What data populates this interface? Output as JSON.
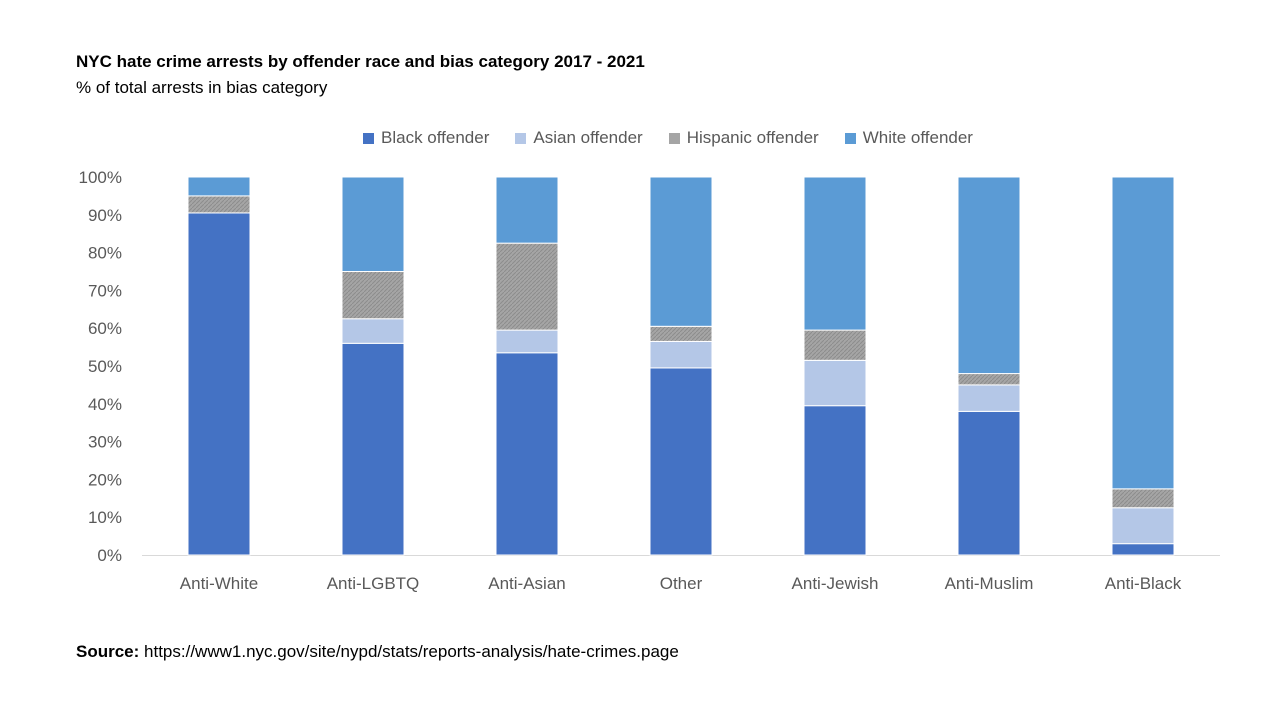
{
  "header": {
    "title": "NYC hate crime arrests by offender race and bias category 2017 - 2021",
    "subtitle": "% of total arrests in bias category"
  },
  "footer": {
    "source_label": "Source:",
    "source_url": "https://www1.nyc.gov/site/nypd/stats/reports-analysis/hate-crimes.page"
  },
  "colors": {
    "black": "#4472C4",
    "asian": "#B4C7E7",
    "hispanic": "#A5A5A5",
    "white": "#5B9BD5"
  },
  "chart_data": {
    "type": "bar",
    "stacked": true,
    "title": "NYC hate crime arrests by offender race and bias category 2017 - 2021",
    "subtitle": "% of total arrests in bias category",
    "xlabel": "",
    "ylabel": "",
    "ylim": [
      0,
      100
    ],
    "y_ticks": [
      "0%",
      "10%",
      "20%",
      "30%",
      "40%",
      "50%",
      "60%",
      "70%",
      "80%",
      "90%",
      "100%"
    ],
    "legend_position": "top",
    "grid": false,
    "categories": [
      "Anti-White",
      "Anti-LGBTQ",
      "Anti-Asian",
      "Other",
      "Anti-Jewish",
      "Anti-Muslim",
      "Anti-Black"
    ],
    "series": [
      {
        "name": "Black offender",
        "color": "#4472C4",
        "values": [
          90.5,
          56,
          53.5,
          49.5,
          39.5,
          38,
          3
        ]
      },
      {
        "name": "Asian offender",
        "color": "#B4C7E7",
        "values": [
          0,
          6.5,
          6,
          7,
          12,
          7,
          9.5
        ]
      },
      {
        "name": "Hispanic offender",
        "color": "#A5A5A5",
        "values": [
          4.5,
          12.5,
          23,
          4,
          8,
          3,
          5
        ]
      },
      {
        "name": "White offender",
        "color": "#5B9BD5",
        "values": [
          5,
          25,
          17.5,
          39.5,
          40.5,
          52,
          82.5
        ]
      }
    ]
  }
}
